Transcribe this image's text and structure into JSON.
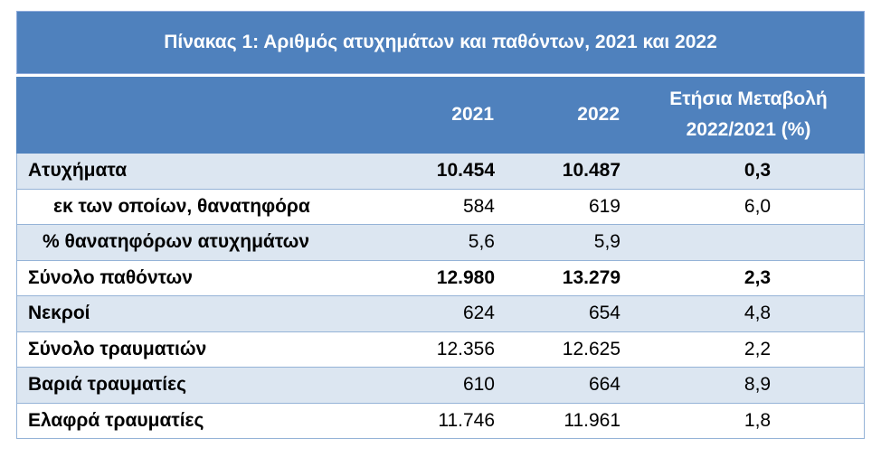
{
  "table": {
    "title": "Πίνακας 1: Αριθμός ατυχημάτων και παθόντων, 2021 και 2022",
    "headers": {
      "col_2021": "2021",
      "col_2022": "2022",
      "col_change_line1": "Ετήσια Μεταβολή",
      "col_change_line2": "2022/2021 (%)"
    },
    "rows": [
      {
        "label": "Ατυχήματα",
        "v2021": "10.454",
        "v2022": "10.487",
        "change": "0,3"
      },
      {
        "label": "εκ των οποίων, θανατηφόρα",
        "v2021": "584",
        "v2022": "619",
        "change": "6,0"
      },
      {
        "label": "% θανατηφόρων ατυχημάτων",
        "v2021": "5,6",
        "v2022": "5,9",
        "change": ""
      },
      {
        "label": "Σύνολο παθόντων",
        "v2021": "12.980",
        "v2022": "13.279",
        "change": "2,3"
      },
      {
        "label": "Νεκροί",
        "v2021": "624",
        "v2022": "654",
        "change": "4,8"
      },
      {
        "label": "Σύνολο τραυματιών",
        "v2021": "12.356",
        "v2022": "12.625",
        "change": "2,2"
      },
      {
        "label": "Βαριά τραυματίες",
        "v2021": "610",
        "v2022": "664",
        "change": "8,9"
      },
      {
        "label": "Ελαφρά τραυματίες",
        "v2021": "11.746",
        "v2022": "11.961",
        "change": "1,8"
      }
    ]
  },
  "colors": {
    "header_blue": "#4f81bd",
    "row_shade": "#dce6f1",
    "border": "#95b3d7"
  }
}
